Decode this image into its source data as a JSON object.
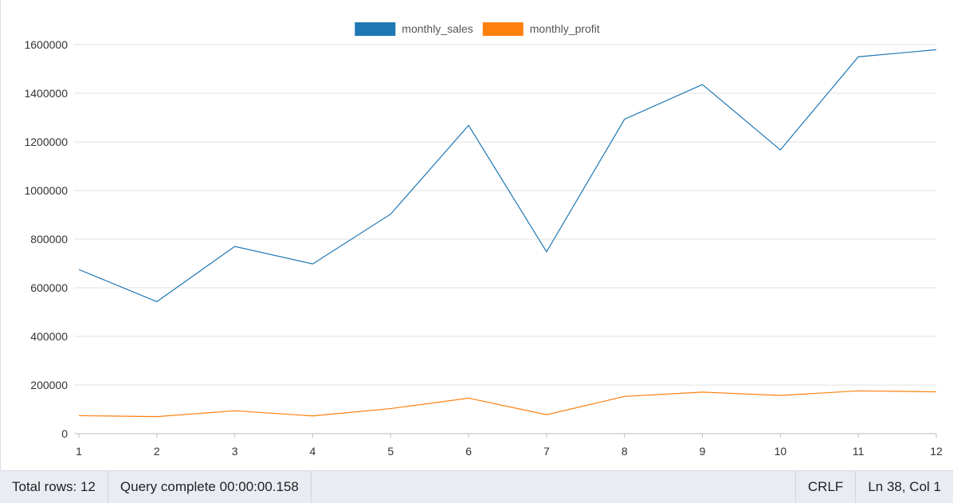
{
  "chart_data": {
    "type": "line",
    "x": [
      1,
      2,
      3,
      4,
      5,
      6,
      7,
      8,
      9,
      10,
      11,
      12
    ],
    "series": [
      {
        "name": "monthly_sales",
        "color": "#1f77b4",
        "values": [
          675000,
          543000,
          770000,
          698000,
          903000,
          1268000,
          748000,
          1293000,
          1436000,
          1167000,
          1550000,
          1579000
        ]
      },
      {
        "name": "monthly_profit",
        "color": "#ff7f0e",
        "values": [
          74000,
          70000,
          94000,
          73000,
          103000,
          146000,
          78000,
          153000,
          171000,
          157000,
          176000,
          172000
        ]
      }
    ],
    "ylim": [
      0,
      1600000
    ],
    "yticks": [
      0,
      200000,
      400000,
      600000,
      800000,
      1000000,
      1200000,
      1400000,
      1600000
    ],
    "xlim": [
      1,
      12
    ],
    "grid": "horizontal",
    "legend_position": "top-center",
    "title": "",
    "xlabel": "",
    "ylabel": ""
  },
  "status_bar": {
    "total_rows": "Total rows: 12",
    "query_status": "Query complete 00:00:00.158",
    "line_ending": "CRLF",
    "cursor_position": "Ln 38, Col 1"
  }
}
